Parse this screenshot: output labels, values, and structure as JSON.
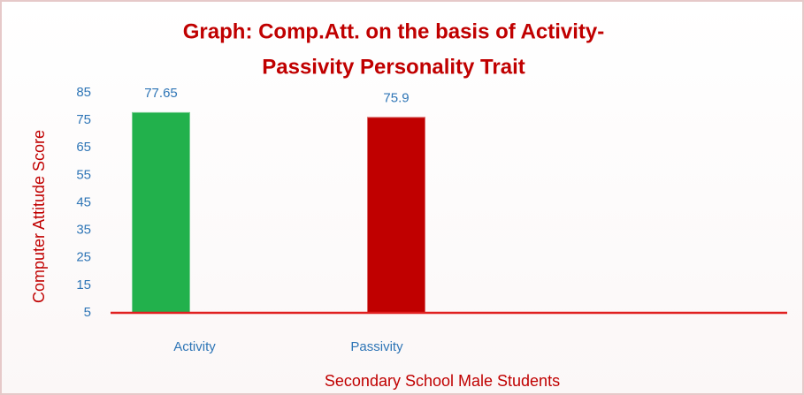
{
  "chart_data": {
    "type": "bar",
    "title": [
      "Graph: Comp.Att. on the basis of  Activity-",
      "Passivity Personality Trait"
    ],
    "x_label": "Secondary School Male Students",
    "y_label": "Computer Attitude Score",
    "categories": [
      "Activity",
      "Passivity"
    ],
    "values": [
      77.65,
      75.9
    ],
    "colors": [
      "#22b14c",
      "#c00000"
    ],
    "ylim": [
      5,
      85
    ],
    "yticks": [
      5,
      15,
      25,
      35,
      45,
      55,
      65,
      75,
      85
    ],
    "grid": false
  }
}
